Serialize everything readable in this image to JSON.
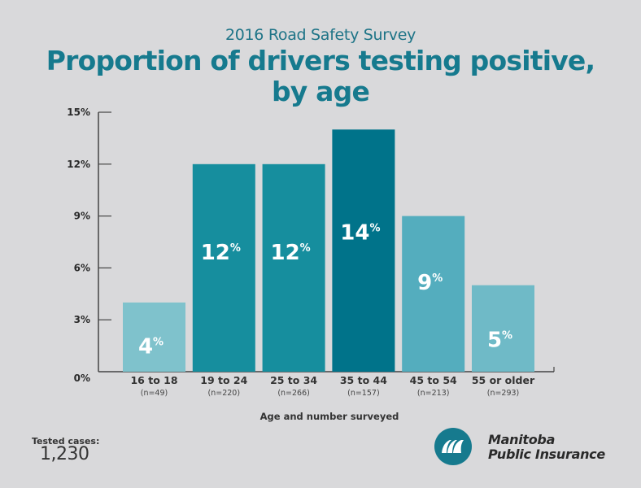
{
  "header": {
    "subtitle": "2016 Road Safety Survey",
    "title_line1": "Proportion of drivers testing positive,",
    "title_line2": "by age"
  },
  "chart_data": {
    "type": "bar",
    "title": "Proportion of drivers testing positive, by age",
    "subtitle": "2016 Road Safety Survey",
    "xlabel": "Age and number surveyed",
    "ylabel": "",
    "ylim": [
      0,
      15
    ],
    "yticks": [
      0,
      3,
      6,
      9,
      12,
      15
    ],
    "ytick_labels": [
      "0%",
      "3%",
      "6%",
      "9%",
      "12%",
      "15%"
    ],
    "grid": false,
    "categories": [
      "16 to 18",
      "19 to 24",
      "25 to 34",
      "35 to 44",
      "45 to 54",
      "55 or older"
    ],
    "sample_sizes": [
      "(n=49)",
      "(n=220)",
      "(n=266)",
      "(n=157)",
      "(n=213)",
      "(n=293)"
    ],
    "values": [
      4,
      12,
      12,
      14,
      9,
      5
    ],
    "data_labels": [
      "4",
      "12",
      "12",
      "14",
      "9",
      "5"
    ],
    "data_label_suffix": "%",
    "colors": [
      "#7fc2cc",
      "#168e9e",
      "#168e9e",
      "#00738a",
      "#54adbe",
      "#6fbac7"
    ]
  },
  "footer": {
    "tested_label": "Tested cases:",
    "tested_value": "1,230",
    "brand_line1": "Manitoba",
    "brand_line2": "Public Insurance",
    "brand_color": "#167a8e"
  }
}
